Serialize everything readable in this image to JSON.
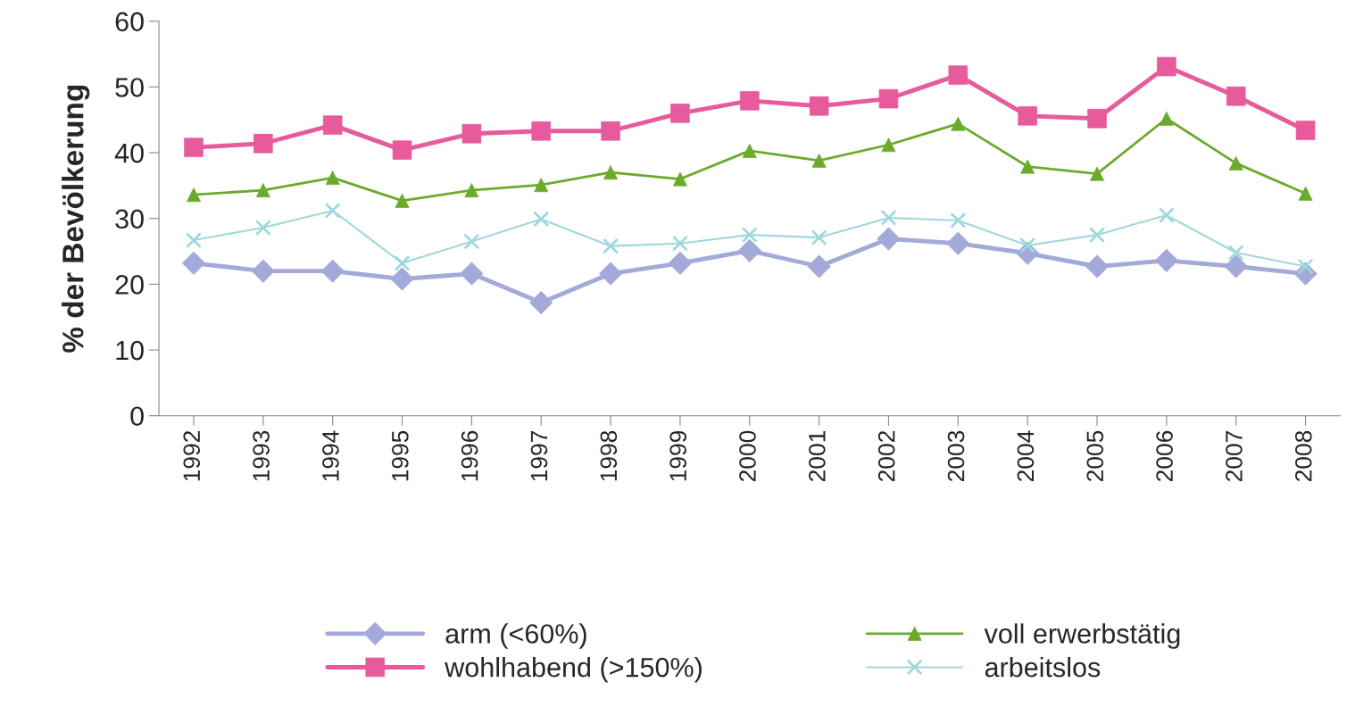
{
  "chart_data": {
    "type": "line",
    "ylabel": "% der Bevölkerung",
    "categories": [
      "1992",
      "1993",
      "1994",
      "1995",
      "1996",
      "1997",
      "1998",
      "1999",
      "2000",
      "2001",
      "2002",
      "2003",
      "2004",
      "2005",
      "2006",
      "2007",
      "2008"
    ],
    "series": [
      {
        "name": "arm (<60%)",
        "color": "#a3a9d8",
        "marker": "diamond",
        "values": [
          23.2,
          22.0,
          22.0,
          20.8,
          21.6,
          17.2,
          21.6,
          23.2,
          25.1,
          22.7,
          26.9,
          26.2,
          24.7,
          22.7,
          23.6,
          22.7,
          21.6
        ]
      },
      {
        "name": "wohlhabend (>150%)",
        "color": "#e75a9c",
        "marker": "square",
        "values": [
          40.8,
          41.4,
          44.2,
          40.4,
          42.9,
          43.3,
          43.3,
          46.0,
          47.9,
          47.1,
          48.2,
          51.8,
          45.6,
          45.2,
          53.1,
          48.6,
          43.4
        ]
      },
      {
        "name": "voll erwerbstätig",
        "color": "#6bab2c",
        "marker": "triangle",
        "values": [
          33.6,
          34.3,
          36.2,
          32.7,
          34.3,
          35.1,
          37.0,
          36.0,
          40.3,
          38.8,
          41.2,
          44.4,
          37.9,
          36.8,
          45.2,
          38.4,
          33.8
        ]
      },
      {
        "name": "arbeitslos",
        "color": "#9fd8dc",
        "marker": "cross",
        "values": [
          26.7,
          28.6,
          31.2,
          23.2,
          26.5,
          29.9,
          25.8,
          26.2,
          27.5,
          27.1,
          30.1,
          29.7,
          25.9,
          27.5,
          30.5,
          24.8,
          22.7
        ]
      }
    ],
    "ylim": [
      0,
      60
    ],
    "yticks": [
      0,
      10,
      20,
      30,
      40,
      50,
      60
    ],
    "grid": false,
    "legend": "bottom"
  }
}
